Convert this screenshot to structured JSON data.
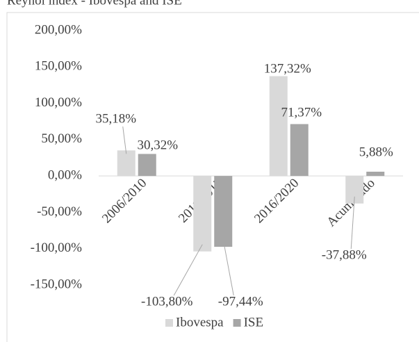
{
  "chart_data": {
    "type": "bar",
    "title": "Reynol index - Ibovespa and ISE",
    "categories": [
      "2006/2010",
      "2011/2015",
      "2016/2020",
      "Acumulado"
    ],
    "series": [
      {
        "name": "Ibovespa",
        "color": "#d9d9d9",
        "values": [
          35.18,
          -103.8,
          137.32,
          -37.88
        ],
        "value_labels": [
          "35,18%",
          "-103,80%",
          "137,32%",
          "-37,88%"
        ]
      },
      {
        "name": "ISE",
        "color": "#a6a6a6",
        "values": [
          30.32,
          -97.44,
          71.37,
          5.88
        ],
        "value_labels": [
          "30,32%",
          "-97,44%",
          "71,37%",
          "5,88%"
        ]
      }
    ],
    "ylim": [
      -150,
      200
    ],
    "yticks": [
      {
        "value": -150,
        "label": "-150,00%"
      },
      {
        "value": -100,
        "label": "-100,00%"
      },
      {
        "value": -50,
        "label": "-50,00%"
      },
      {
        "value": 0,
        "label": "0,00%"
      },
      {
        "value": 50,
        "label": "50,00%"
      },
      {
        "value": 100,
        "label": "100,00%"
      },
      {
        "value": 150,
        "label": "150,00%"
      },
      {
        "value": 200,
        "label": "200,00%"
      }
    ],
    "legend": "bottom"
  }
}
